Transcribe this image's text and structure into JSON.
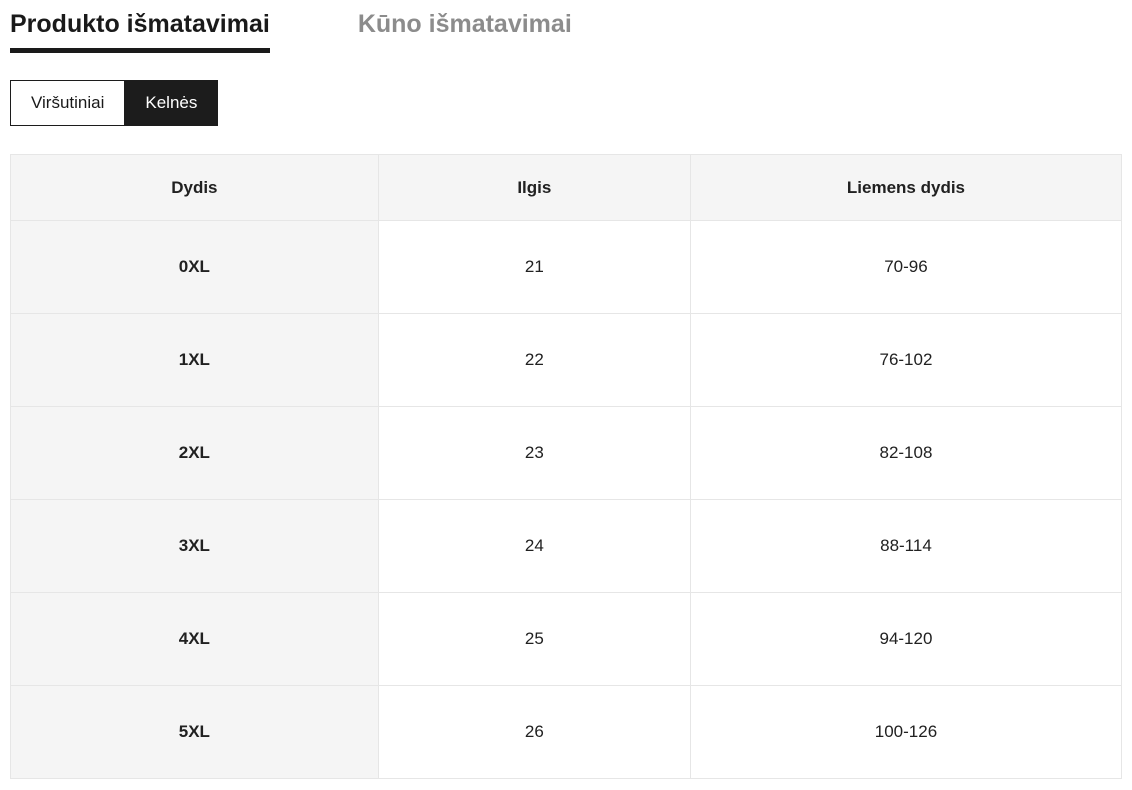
{
  "tabs": [
    {
      "label": "Produkto išmatavimai",
      "active": true
    },
    {
      "label": "Kūno išmatavimai",
      "active": false
    }
  ],
  "category_toggle": [
    {
      "label": "Viršutiniai",
      "selected": false
    },
    {
      "label": "Kelnės",
      "selected": true
    }
  ],
  "table": {
    "headers": [
      "Dydis",
      "Ilgis",
      "Liemens dydis"
    ],
    "rows": [
      [
        "0XL",
        "21",
        "70-96"
      ],
      [
        "1XL",
        "22",
        "76-102"
      ],
      [
        "2XL",
        "23",
        "82-108"
      ],
      [
        "3XL",
        "24",
        "88-114"
      ],
      [
        "4XL",
        "25",
        "94-120"
      ],
      [
        "5XL",
        "26",
        "100-126"
      ]
    ]
  },
  "colors": {
    "active_tab_text": "#1a1a1a",
    "active_tab_underline": "#1a1a1a",
    "inactive_tab_text": "#8c8c8c",
    "selected_toggle_bg": "#1c1c1c",
    "selected_toggle_text": "#ffffff",
    "table_header_bg": "#f5f5f5",
    "table_first_column_bg": "#f5f5f5",
    "table_border": "#e6e6e6",
    "table_text": "#212121"
  }
}
